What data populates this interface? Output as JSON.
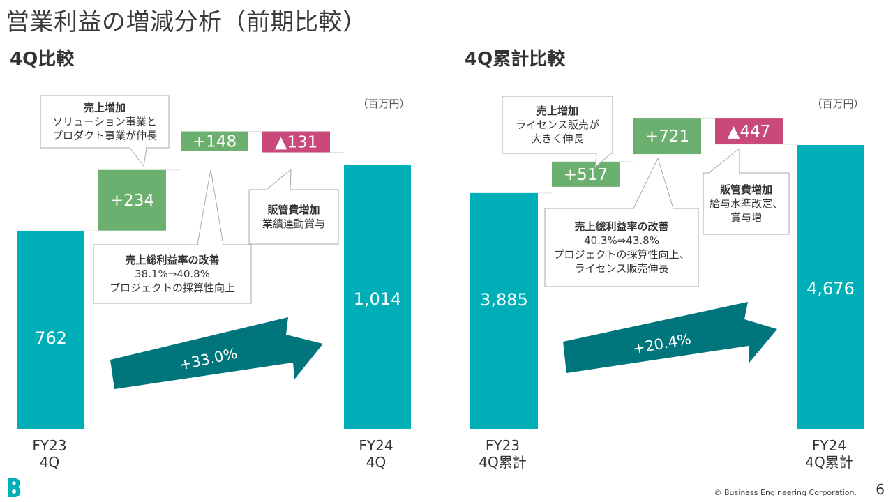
{
  "page": {
    "title": "営業利益の増減分析（前期比較）",
    "copyright": "© Business Engineering Corporation.",
    "page_number": "6"
  },
  "colors": {
    "bar": "#00AEB7",
    "positive": "#6BB06E",
    "negative": "#C8497A",
    "arrow": "#00767C",
    "callout_border": "#AAAAAA"
  },
  "chart_data": [
    {
      "type": "waterfall",
      "title": "4Q比較",
      "unit": "（百万円）",
      "start": {
        "label": [
          "FY23",
          "4Q"
        ],
        "value": 762,
        "display": "762"
      },
      "steps": [
        {
          "value": 234,
          "display": "+234",
          "kind": "increase",
          "callout": [
            "売上増加",
            "ソリューション事業と",
            "プロダクト事業が伸長"
          ]
        },
        {
          "value": 148,
          "display": "+148",
          "kind": "increase",
          "callout": [
            "売上総利益率の改善",
            "38.1%⇒40.8%",
            "プロジェクトの採算性向上"
          ]
        },
        {
          "value": -131,
          "display": "▲131",
          "kind": "decrease",
          "callout": [
            "販管費増加",
            "業績連動賞与"
          ]
        }
      ],
      "end": {
        "label": [
          "FY24",
          "4Q"
        ],
        "value": 1014,
        "display": "1,014"
      },
      "growth": "+33.0%",
      "ylim": [
        0,
        1014
      ]
    },
    {
      "type": "waterfall",
      "title": "4Q累計比較",
      "unit": "（百万円）",
      "start": {
        "label": [
          "FY23",
          "4Q累計"
        ],
        "value": 3885,
        "display": "3,885"
      },
      "steps": [
        {
          "value": 517,
          "display": "+517",
          "kind": "increase",
          "callout": [
            "売上増加",
            "ライセンス販売が",
            "大きく伸長"
          ]
        },
        {
          "value": 721,
          "display": "+721",
          "kind": "increase",
          "callout": [
            "売上総利益率の改善",
            "40.3%⇒43.8%",
            "プロジェクトの採算性向上、",
            "ライセンス販売伸長"
          ]
        },
        {
          "value": -447,
          "display": "▲447",
          "kind": "decrease",
          "callout": [
            "販管費増加",
            "給与水準改定、",
            "賞与増"
          ]
        }
      ],
      "end": {
        "label": [
          "FY24",
          "4Q累計"
        ],
        "value": 4676,
        "display": "4,676"
      },
      "growth": "+20.4%",
      "ylim": [
        0,
        4676
      ]
    }
  ]
}
